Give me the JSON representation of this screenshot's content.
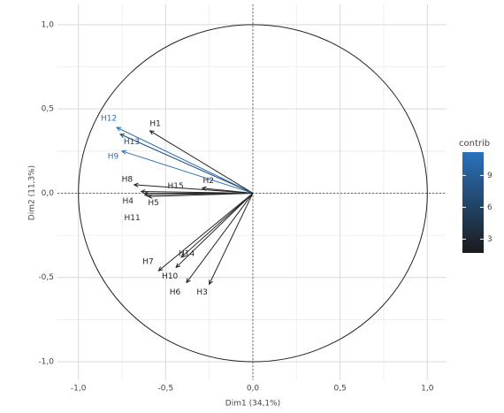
{
  "chart_data": {
    "type": "arrow",
    "xlabel": "Dim1 (34,1%)",
    "ylabel": "Dim2 (11,3%)",
    "xlim": [
      -1.12,
      1.11
    ],
    "ylim": [
      -1.11,
      1.12
    ],
    "xticks": [
      {
        "value": -1,
        "label": "-1,0"
      },
      {
        "value": -0.5,
        "label": "-0,5"
      },
      {
        "value": 0,
        "label": "0,0"
      },
      {
        "value": 0.5,
        "label": "0,5"
      },
      {
        "value": 1,
        "label": "1,0"
      }
    ],
    "yticks": [
      {
        "value": -1,
        "label": "-1,0"
      },
      {
        "value": -0.5,
        "label": "-0,5"
      },
      {
        "value": 0,
        "label": "0,0"
      },
      {
        "value": 0.5,
        "label": "0,5"
      },
      {
        "value": 1,
        "label": "1,0"
      }
    ],
    "grid": true,
    "series": [
      {
        "name": "H12",
        "color": "#2b6fb2",
        "x": -0.78,
        "y": 0.39
      },
      {
        "name": "H1",
        "color": "#222222",
        "x": -0.59,
        "y": 0.37
      },
      {
        "name": "H13",
        "color": "#1f4a78",
        "x": -0.76,
        "y": 0.35
      },
      {
        "name": "H9",
        "color": "#2b6fb2",
        "x": -0.75,
        "y": 0.25
      },
      {
        "name": "H8",
        "color": "#222222",
        "x": -0.68,
        "y": 0.05
      },
      {
        "name": "H15",
        "color": "#2a2a2a",
        "x": -0.62,
        "y": 0.0
      },
      {
        "name": "H2",
        "color": "#2a2a2a",
        "x": -0.29,
        "y": 0.03
      },
      {
        "name": "H4",
        "color": "#2a2a2a",
        "x": -0.64,
        "y": 0.01
      },
      {
        "name": "H5",
        "color": "#2a2a2a",
        "x": -0.62,
        "y": -0.01
      },
      {
        "name": "H11",
        "color": "#2a2a2a",
        "x": -0.6,
        "y": -0.02
      },
      {
        "name": "H7",
        "color": "#222222",
        "x": -0.54,
        "y": -0.46
      },
      {
        "name": "H14",
        "color": "#2a2a2a",
        "x": -0.41,
        "y": -0.38
      },
      {
        "name": "H10",
        "color": "#222222",
        "x": -0.44,
        "y": -0.44
      },
      {
        "name": "H6",
        "color": "#222222",
        "x": -0.38,
        "y": -0.53
      },
      {
        "name": "H3",
        "color": "#222222",
        "x": -0.25,
        "y": -0.54
      }
    ],
    "legend": {
      "title": "contrib",
      "lim": [
        1.7,
        11.2
      ],
      "ticks": [
        3,
        6,
        9
      ],
      "colors": [
        "#1b1b1b",
        "#2a72bd"
      ]
    }
  }
}
